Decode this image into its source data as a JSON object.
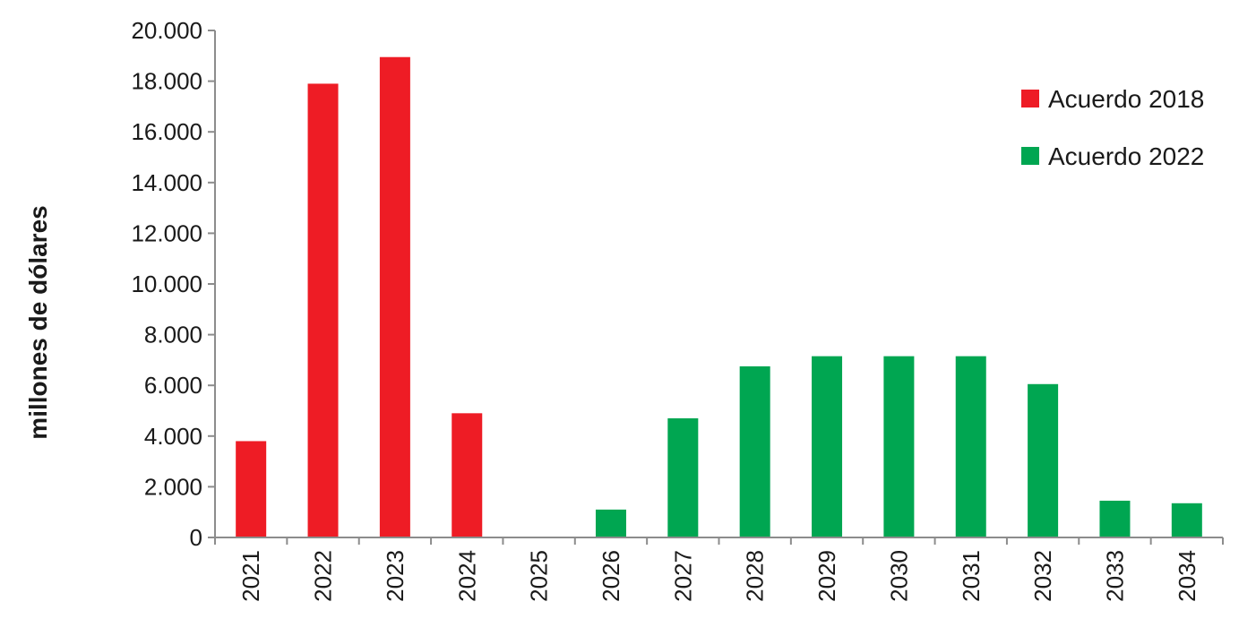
{
  "chart_data": {
    "type": "bar",
    "categories": [
      "2021",
      "2022",
      "2023",
      "2024",
      "2025",
      "2026",
      "2027",
      "2028",
      "2029",
      "2030",
      "2031",
      "2032",
      "2033",
      "2034"
    ],
    "series": [
      {
        "name": "Acuerdo 2018",
        "color": "#ee1c25",
        "values": [
          3800,
          17900,
          18950,
          4900,
          0,
          0,
          0,
          0,
          0,
          0,
          0,
          0,
          0,
          0
        ]
      },
      {
        "name": "Acuerdo 2022",
        "color": "#00a651",
        "values": [
          0,
          0,
          0,
          0,
          0,
          1100,
          4700,
          6750,
          7150,
          7150,
          7150,
          6050,
          1450,
          1350
        ]
      }
    ],
    "ylabel": "millones de dólares",
    "ylim": [
      0,
      20000
    ],
    "yticks": [
      "0",
      "2.000",
      "4.000",
      "6.000",
      "8.000",
      "10.000",
      "12.000",
      "14.000",
      "16.000",
      "18.000",
      "20.000"
    ],
    "grid": false,
    "legend": "top-right"
  }
}
